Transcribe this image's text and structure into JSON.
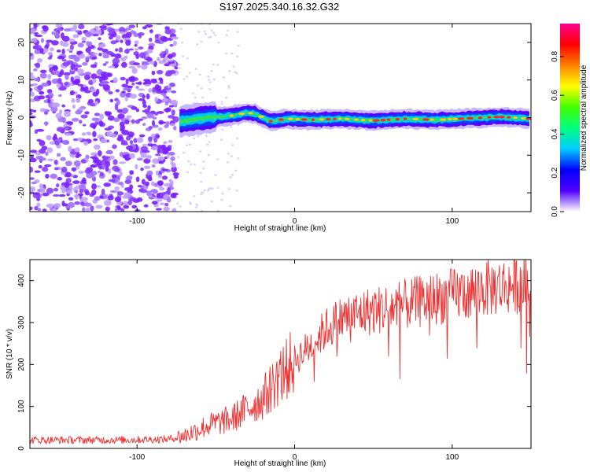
{
  "title": "S197.2025.340.16.32.G32",
  "chart_data": [
    {
      "type": "heatmap",
      "name": "spectrogram",
      "xlabel": "Height of straight line (km)",
      "ylabel": "Frequency (Hz)",
      "xlim": [
        -168,
        150
      ],
      "ylim": [
        -25,
        25
      ],
      "xticks": [
        "-100",
        "0",
        "100"
      ],
      "xtick_values": [
        -100,
        0,
        100
      ],
      "yticks": [
        "20",
        "10",
        "0",
        "-10",
        "-20"
      ],
      "ytick_values": [
        20,
        10,
        0,
        -10,
        -20
      ],
      "noise_region_end_x": -75,
      "signal_track": [
        {
          "x": -73,
          "y": -1.0
        },
        {
          "x": -65,
          "y": -0.5
        },
        {
          "x": -55,
          "y": 0.0
        },
        {
          "x": -40,
          "y": 0.5
        },
        {
          "x": -30,
          "y": 1.3
        },
        {
          "x": -25,
          "y": 1.0
        },
        {
          "x": -15,
          "y": -1.0
        },
        {
          "x": -5,
          "y": -0.3
        },
        {
          "x": 10,
          "y": -0.6
        },
        {
          "x": 30,
          "y": -0.3
        },
        {
          "x": 50,
          "y": -0.8
        },
        {
          "x": 70,
          "y": -0.3
        },
        {
          "x": 90,
          "y": -0.6
        },
        {
          "x": 110,
          "y": -0.2
        },
        {
          "x": 130,
          "y": 0.2
        },
        {
          "x": 150,
          "y": -0.3
        }
      ],
      "colorbar": {
        "label": "Normalized spectral amplitude",
        "range": [
          0.0,
          0.97
        ],
        "ticks": [
          "0.0",
          "0.2",
          "0.4",
          "0.6",
          "0.8"
        ],
        "tick_values": [
          0.0,
          0.2,
          0.4,
          0.6,
          0.8
        ],
        "colors": [
          "#ffffff",
          "#5000ff",
          "#0000ff",
          "#00ccff",
          "#00ff80",
          "#40ff00",
          "#ffff00",
          "#ff8000",
          "#ff0000",
          "#ff0090"
        ]
      }
    },
    {
      "type": "line",
      "name": "snr",
      "xlabel": "Height of straight line (km)",
      "ylabel": "SNR (10 * v/v)",
      "xlim": [
        -168,
        150
      ],
      "ylim": [
        0,
        450
      ],
      "xticks": [
        "-100",
        "0",
        "100"
      ],
      "xtick_values": [
        -100,
        0,
        100
      ],
      "yticks": [
        "0",
        "100",
        "200",
        "300",
        "400"
      ],
      "ytick_values": [
        0,
        100,
        200,
        300,
        400
      ],
      "color": "#f03030",
      "trend": [
        {
          "x": -168,
          "y": 20
        },
        {
          "x": -110,
          "y": 20
        },
        {
          "x": -80,
          "y": 22
        },
        {
          "x": -70,
          "y": 30
        },
        {
          "x": -55,
          "y": 55
        },
        {
          "x": -40,
          "y": 70
        },
        {
          "x": -20,
          "y": 120
        },
        {
          "x": -10,
          "y": 170
        },
        {
          "x": 0,
          "y": 210
        },
        {
          "x": 10,
          "y": 245
        },
        {
          "x": 20,
          "y": 285
        },
        {
          "x": 30,
          "y": 310
        },
        {
          "x": 45,
          "y": 325
        },
        {
          "x": 60,
          "y": 335
        },
        {
          "x": 80,
          "y": 350
        },
        {
          "x": 100,
          "y": 365
        },
        {
          "x": 120,
          "y": 380
        },
        {
          "x": 150,
          "y": 395
        }
      ]
    }
  ]
}
